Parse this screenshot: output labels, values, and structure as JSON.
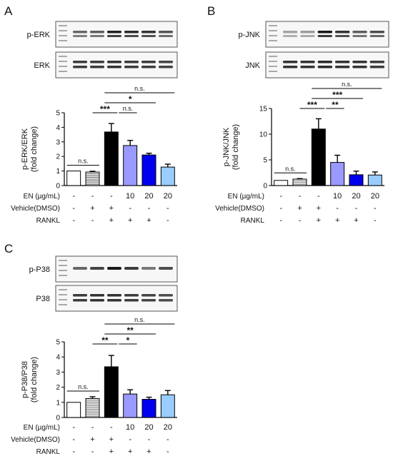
{
  "panels": [
    {
      "letter": "A",
      "blots": [
        "p-ERK",
        "ERK"
      ],
      "treatment_rows": [
        {
          "label": "EN (µg/mL)",
          "cells": [
            "-",
            "-",
            "-",
            "10",
            "20",
            "20"
          ]
        },
        {
          "label": "Vehicle(DMSO)",
          "cells": [
            "-",
            "+",
            "+",
            "-",
            "-",
            "-"
          ]
        },
        {
          "label": "RANKL",
          "cells": [
            "-",
            "-",
            "+",
            "+",
            "+",
            "-"
          ]
        }
      ]
    },
    {
      "letter": "B",
      "blots": [
        "p-JNK",
        "JNK"
      ],
      "treatment_rows": [
        {
          "label": "EN (µg/mL)",
          "cells": [
            "-",
            "-",
            "-",
            "10",
            "20",
            "20"
          ]
        },
        {
          "label": "Vehicle(DMSO)",
          "cells": [
            "-",
            "+",
            "+",
            "-",
            "-",
            "-"
          ]
        },
        {
          "label": "RANKL",
          "cells": [
            "-",
            "-",
            "+",
            "+",
            "+",
            "-"
          ]
        }
      ]
    },
    {
      "letter": "C",
      "blots": [
        "p-P38",
        "P38"
      ],
      "treatment_rows": [
        {
          "label": "EN (µg/mL)",
          "cells": [
            "-",
            "-",
            "-",
            "10",
            "20",
            "20"
          ]
        },
        {
          "label": "Vehicle(DMSO)",
          "cells": [
            "-",
            "+",
            "+",
            "-",
            "-",
            "-"
          ]
        },
        {
          "label": "RANKL",
          "cells": [
            "-",
            "-",
            "+",
            "+",
            "+",
            "-"
          ]
        }
      ]
    }
  ],
  "bar_colors": [
    "#ffffff",
    "#e8e8e8",
    "#000000",
    "#9999ff",
    "#0000ee",
    "#99ccff"
  ],
  "chart_data": [
    {
      "type": "bar",
      "ylabel": "p-ERK/ERK (fold change)",
      "ylabel_lines": [
        "p-ERK/ERK",
        "(fold change)"
      ],
      "ylim": [
        0,
        5
      ],
      "yticks": [
        0,
        1,
        2,
        3,
        4,
        5
      ],
      "values": [
        1.0,
        0.93,
        3.68,
        2.75,
        2.1,
        1.27
      ],
      "errors": [
        0.0,
        0.05,
        0.58,
        0.35,
        0.12,
        0.2
      ],
      "significance": [
        {
          "from": 0,
          "to": 1,
          "label": "n.s."
        },
        {
          "from": 2,
          "to": 3,
          "label": "n.s."
        },
        {
          "from": 1,
          "to": 2,
          "label": "***"
        },
        {
          "from": 2,
          "to": 4,
          "label": "*"
        },
        {
          "from": 2,
          "to": 5,
          "label": "n.s."
        }
      ]
    },
    {
      "type": "bar",
      "ylabel": "p-JNK/JNK (fold change)",
      "ylabel_lines": [
        "p-JNK/JNK",
        "(fold change)"
      ],
      "ylim": [
        0,
        15
      ],
      "yticks": [
        0,
        5,
        10,
        15
      ],
      "values": [
        1.0,
        1.25,
        11.0,
        4.5,
        2.1,
        2.05
      ],
      "errors": [
        0.0,
        0.1,
        2.0,
        1.4,
        0.7,
        0.6
      ],
      "significance": [
        {
          "from": 0,
          "to": 1,
          "label": "n.s."
        },
        {
          "from": 2,
          "to": 3,
          "label": "**"
        },
        {
          "from": 1,
          "to": 2,
          "label": "***"
        },
        {
          "from": 2,
          "to": 4,
          "label": "***"
        },
        {
          "from": 2,
          "to": 5,
          "label": "n.s."
        }
      ]
    },
    {
      "type": "bar",
      "ylabel": "p-P38/P38 (fold change)",
      "ylabel_lines": [
        "p-P38/P38",
        "(fold change)"
      ],
      "ylim": [
        0,
        5
      ],
      "yticks": [
        0,
        1,
        2,
        3,
        4,
        5
      ],
      "values": [
        1.0,
        1.25,
        3.35,
        1.55,
        1.2,
        1.5
      ],
      "errors": [
        0.0,
        0.12,
        0.75,
        0.28,
        0.14,
        0.28
      ],
      "significance": [
        {
          "from": 0,
          "to": 1,
          "label": "n.s."
        },
        {
          "from": 2,
          "to": 3,
          "label": "*"
        },
        {
          "from": 1,
          "to": 2,
          "label": "**"
        },
        {
          "from": 2,
          "to": 4,
          "label": "**"
        },
        {
          "from": 2,
          "to": 5,
          "label": "n.s."
        }
      ]
    }
  ]
}
